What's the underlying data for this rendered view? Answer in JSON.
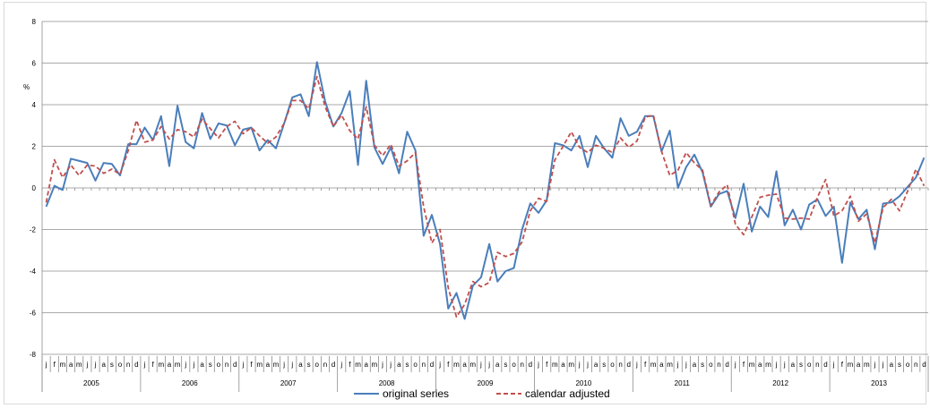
{
  "chart_data": {
    "type": "line",
    "title": "",
    "xlabel": "",
    "ylabel": "%",
    "ylim": [
      -8,
      8
    ],
    "yticks": [
      -8,
      -6,
      -4,
      -2,
      0,
      2,
      4,
      6,
      8
    ],
    "month_labels": [
      "j",
      "f",
      "m",
      "a",
      "m",
      "j",
      "j",
      "a",
      "s",
      "o",
      "n",
      "d"
    ],
    "years": [
      "2005",
      "2006",
      "2007",
      "2008",
      "2009",
      "2010",
      "2011",
      "2012",
      "2013"
    ],
    "legend_position": "bottom",
    "grid": true,
    "series": [
      {
        "name": "original series",
        "color": "#4a7ebb",
        "style": "solid",
        "values": [
          -0.9,
          0.1,
          -0.1,
          1.4,
          1.3,
          1.2,
          0.35,
          1.2,
          1.15,
          0.6,
          2.1,
          2.1,
          2.9,
          2.3,
          3.45,
          1.05,
          3.95,
          2.2,
          1.9,
          3.6,
          2.35,
          3.1,
          3.0,
          2.05,
          2.8,
          2.9,
          1.8,
          2.3,
          1.9,
          3.1,
          4.35,
          4.5,
          3.45,
          6.05,
          4.15,
          2.95,
          3.6,
          4.65,
          1.1,
          5.15,
          1.95,
          1.15,
          1.95,
          0.7,
          2.7,
          1.8,
          -2.3,
          -1.3,
          -2.7,
          -5.8,
          -5.05,
          -6.3,
          -4.7,
          -4.3,
          -2.7,
          -4.5,
          -4.0,
          -3.85,
          -2.0,
          -0.75,
          -1.2,
          -0.6,
          2.15,
          2.05,
          1.8,
          2.5,
          1.0,
          2.5,
          1.9,
          1.45,
          3.35,
          2.5,
          2.7,
          3.45,
          3.45,
          1.75,
          2.75,
          0.0,
          1.0,
          1.6,
          0.75,
          -0.9,
          -0.3,
          -0.15,
          -1.45,
          0.2,
          -2.1,
          -0.9,
          -1.4,
          0.8,
          -1.8,
          -1.05,
          -2.0,
          -0.8,
          -0.55,
          -1.35,
          -0.9,
          -3.6,
          -0.7,
          -1.5,
          -1.05,
          -2.95,
          -0.75,
          -0.7,
          -0.4,
          0.05,
          0.5,
          1.45
        ]
      },
      {
        "name": "calendar adjusted",
        "color": "#c0504d",
        "style": "dashed",
        "values": [
          -0.7,
          1.35,
          0.5,
          1.1,
          0.6,
          1.1,
          1.05,
          0.7,
          0.9,
          0.65,
          1.8,
          3.25,
          2.2,
          2.3,
          2.95,
          2.35,
          2.8,
          2.7,
          2.45,
          3.3,
          2.85,
          2.4,
          2.95,
          3.2,
          2.6,
          2.9,
          2.5,
          2.15,
          2.45,
          3.1,
          4.2,
          4.2,
          3.8,
          5.35,
          3.9,
          2.95,
          3.5,
          2.75,
          2.35,
          3.9,
          2.05,
          1.55,
          2.1,
          1.05,
          1.3,
          1.7,
          -0.9,
          -2.65,
          -2.0,
          -4.8,
          -6.2,
          -5.6,
          -4.5,
          -4.75,
          -4.55,
          -3.1,
          -3.3,
          -3.15,
          -2.6,
          -1.1,
          -0.5,
          -0.65,
          1.35,
          2.0,
          2.7,
          1.95,
          1.7,
          2.05,
          1.9,
          1.7,
          2.4,
          1.95,
          2.25,
          3.4,
          3.5,
          1.75,
          0.6,
          0.85,
          1.7,
          1.2,
          0.85,
          -0.85,
          -0.2,
          0.15,
          -1.75,
          -2.25,
          -1.4,
          -0.45,
          -0.35,
          -0.3,
          -1.45,
          -1.5,
          -1.45,
          -1.5,
          -0.45,
          0.4,
          -1.35,
          -1.1,
          -0.4,
          -1.6,
          -1.25,
          -2.65,
          -0.95,
          -0.55,
          -1.1,
          -0.15,
          0.9,
          0.1
        ]
      }
    ]
  }
}
